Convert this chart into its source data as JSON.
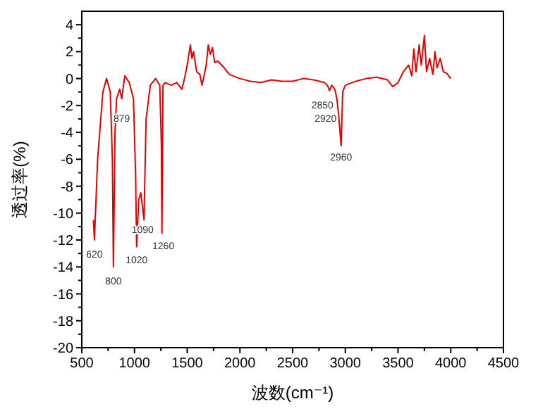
{
  "chart_data": {
    "type": "line",
    "xlabel": "波数(cm⁻¹)",
    "ylabel": "透过率(%)",
    "xlim": [
      500,
      4500
    ],
    "ylim": [
      -20,
      5
    ],
    "xticks": [
      500,
      {
        "value": 750,
        "label": null
      },
      1000,
      {
        "value": 1250,
        "label": null
      },
      1500,
      {
        "value": 1750,
        "label": null
      },
      2000,
      {
        "value": 2250,
        "label": null
      },
      2500,
      {
        "value": 2750,
        "label": null
      },
      3000,
      {
        "value": 3250,
        "label": null
      },
      3500,
      {
        "value": 3750,
        "label": null
      },
      4000,
      {
        "value": 4250,
        "label": null
      },
      4500
    ],
    "yticks": [
      -20,
      {
        "value": -19,
        "label": null
      },
      -18,
      {
        "value": -17,
        "label": null
      },
      -16,
      {
        "value": -15,
        "label": null
      },
      -14,
      {
        "value": -13,
        "label": null
      },
      -12,
      {
        "value": -11,
        "label": null
      },
      -10,
      {
        "value": -9,
        "label": null
      },
      -8,
      {
        "value": -7,
        "label": null
      },
      -6,
      {
        "value": -5,
        "label": null
      },
      -4,
      {
        "value": -3,
        "label": null
      },
      -2,
      {
        "value": -1,
        "label": null
      },
      0,
      {
        "value": 1,
        "label": null
      },
      2,
      {
        "value": 3,
        "label": null
      },
      4
    ],
    "series": [
      {
        "color": "#e00000",
        "x": [
          610,
          620,
          650,
          700,
          735,
          770,
          790,
          800,
          815,
          830,
          860,
          879,
          908,
          950,
          990,
          1010,
          1020,
          1040,
          1060,
          1075,
          1090,
          1110,
          1150,
          1200,
          1240,
          1255,
          1260,
          1270,
          1290,
          1350,
          1400,
          1450,
          1480,
          1500,
          1530,
          1545,
          1560,
          1590,
          1620,
          1640,
          1660,
          1680,
          1700,
          1720,
          1740,
          1760,
          1790,
          1850,
          1900,
          2000,
          2100,
          2200,
          2300,
          2400,
          2500,
          2600,
          2700,
          2800,
          2830,
          2850,
          2870,
          2900,
          2920,
          2940,
          2960,
          2975,
          3000,
          3100,
          3200,
          3300,
          3400,
          3450,
          3500,
          3550,
          3600,
          3630,
          3650,
          3670,
          3700,
          3720,
          3750,
          3770,
          3800,
          3830,
          3850,
          3870,
          3900,
          3930,
          3960,
          4000
        ],
        "values": [
          -10.5,
          -12,
          -6,
          -1,
          0,
          -1,
          -6,
          -14,
          -4,
          -1.5,
          -0.8,
          -1.5,
          0.2,
          -0.3,
          -1.5,
          -7,
          -12.5,
          -9,
          -8.5,
          -9.5,
          -10.5,
          -3,
          -0.5,
          0,
          -0.5,
          -5,
          -11.5,
          -0.5,
          -0.3,
          -0.5,
          -0.3,
          -0.8,
          0.2,
          1,
          2.5,
          1.5,
          2,
          0.5,
          0.3,
          -0.5,
          0.2,
          1,
          2.5,
          1.8,
          2.3,
          1.2,
          1.3,
          0.8,
          0.3,
          0,
          -0.2,
          -0.3,
          -0.1,
          -0.2,
          -0.2,
          0,
          -0.1,
          -0.3,
          -0.5,
          -0.9,
          -0.5,
          -0.8,
          -1.5,
          -3,
          -5,
          -1,
          -0.5,
          -0.2,
          0,
          0.1,
          -0.1,
          -0.6,
          -0.3,
          0.5,
          1,
          0.2,
          2.2,
          0.5,
          2.5,
          1,
          3.2,
          0.5,
          1.5,
          0.3,
          2,
          0.8,
          1.5,
          0.5,
          0.4,
          0
        ]
      }
    ],
    "annotations": [
      {
        "text": "620",
        "x": 620,
        "y": -12
      },
      {
        "text": "800",
        "x": 800,
        "y": -14
      },
      {
        "text": "879",
        "x": 879,
        "y": -1.5
      },
      {
        "text": "1020",
        "x": 1020,
        "y": -12.5
      },
      {
        "text": "1090",
        "x": 1090,
        "y": -10.5
      },
      {
        "text": "1260",
        "x": 1260,
        "y": -11.5
      },
      {
        "text": "2850",
        "x": 2850,
        "y": -0.9
      },
      {
        "text": "2920",
        "x": 2920,
        "y": -1.5
      },
      {
        "text": "2960",
        "x": 2960,
        "y": -5
      }
    ]
  }
}
